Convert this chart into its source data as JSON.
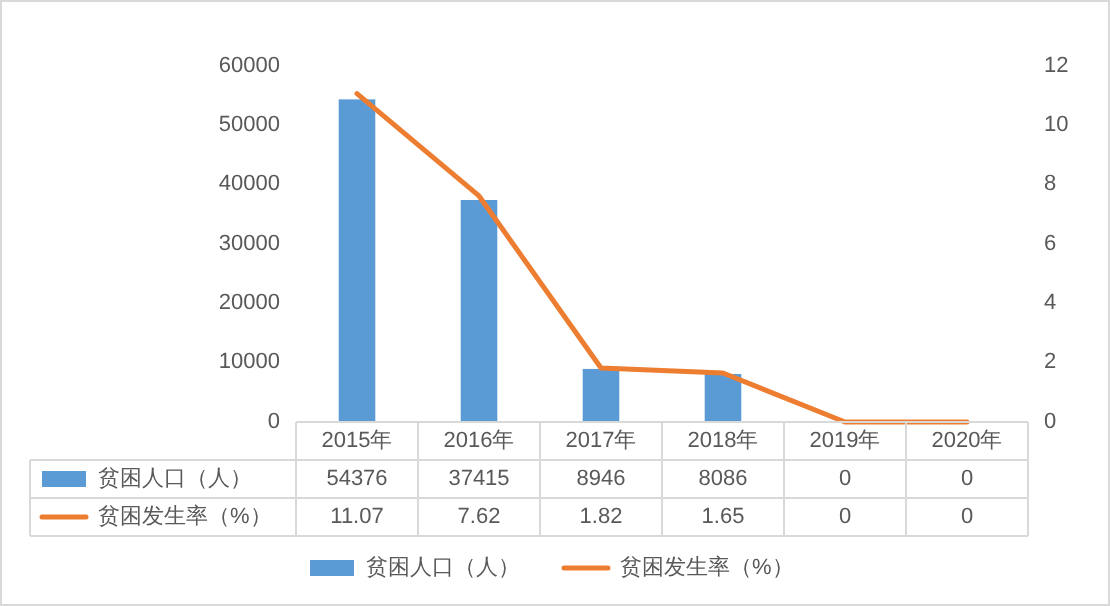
{
  "chart_data": {
    "type": "bar",
    "categories": [
      "2015年",
      "2016年",
      "2017年",
      "2018年",
      "2019年",
      "2020年"
    ],
    "series": [
      {
        "name": "贫困人口（人）",
        "color": "#5b9bd5",
        "values": [
          54376,
          37415,
          8946,
          8086,
          0,
          0
        ]
      },
      {
        "name": "贫困发生率（%）",
        "type": "line",
        "axis": "y2",
        "color": "#ed7d31",
        "values": [
          11.07,
          7.62,
          1.82,
          1.65,
          0,
          0
        ]
      }
    ],
    "ylim": [
      0,
      60000
    ],
    "yticks": [
      0,
      10000,
      20000,
      30000,
      40000,
      50000,
      60000
    ],
    "y2lim": [
      0,
      12
    ],
    "y2ticks": [
      0,
      2,
      4,
      6,
      8,
      10,
      12
    ],
    "data_labels": true,
    "legend": "bottom"
  }
}
